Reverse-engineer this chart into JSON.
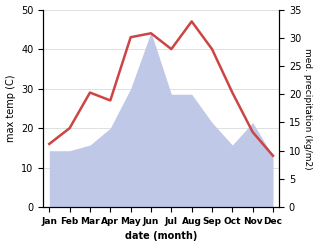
{
  "months": [
    "Jan",
    "Feb",
    "Mar",
    "Apr",
    "May",
    "Jun",
    "Jul",
    "Aug",
    "Sep",
    "Oct",
    "Nov",
    "Dec"
  ],
  "temperature": [
    16,
    20,
    29,
    27,
    43,
    44,
    40,
    47,
    40,
    29,
    19,
    13
  ],
  "precipitation_mm": [
    10,
    10,
    11,
    14,
    21,
    31,
    20,
    20,
    15,
    11,
    15,
    9
  ],
  "temp_ylim": [
    0,
    50
  ],
  "precip_ylim": [
    0,
    35
  ],
  "temp_color": "#cc4444",
  "precip_fill_color": "#c0c8e8",
  "ylabel_left": "max temp (C)",
  "ylabel_right": "med. precipitation (kg/m2)",
  "xlabel": "date (month)",
  "temp_linewidth": 1.8,
  "background_color": "#ffffff"
}
